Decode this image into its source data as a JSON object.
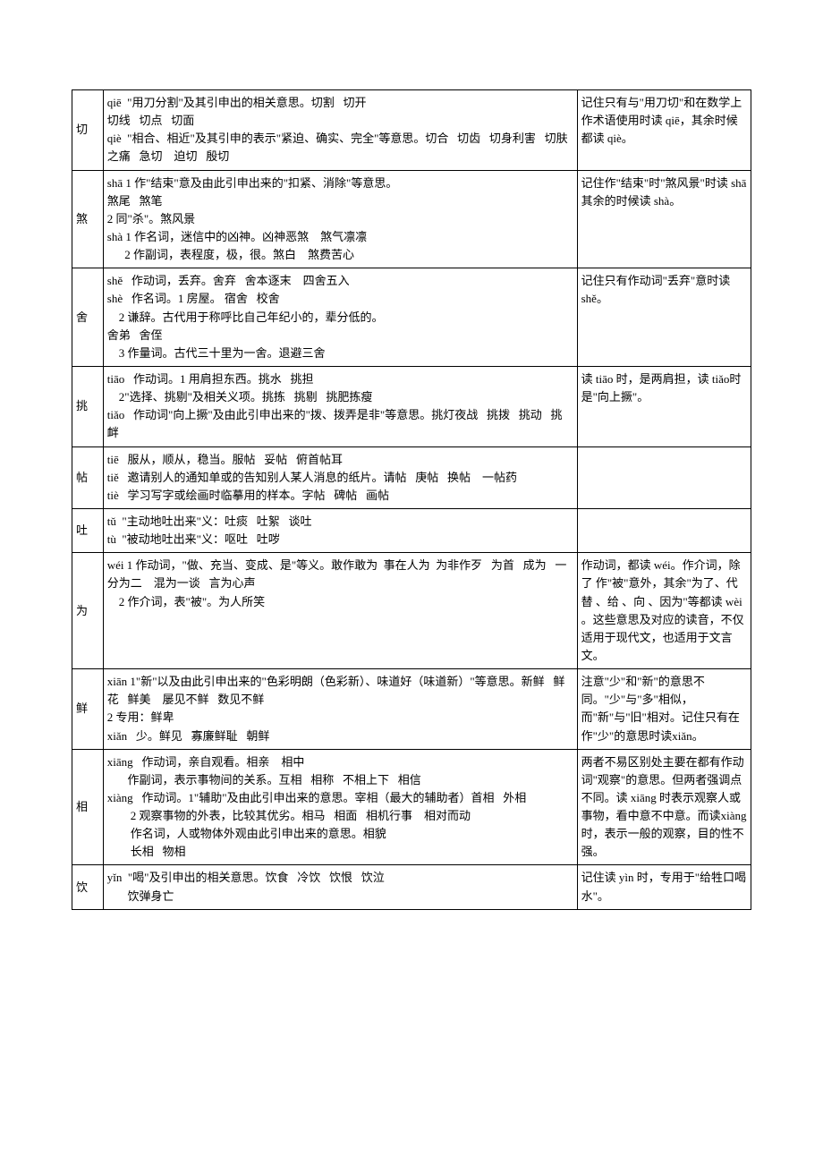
{
  "table": {
    "col_widths": [
      "34px",
      "518px",
      "190px"
    ],
    "border_color": "#000000",
    "font_size": 13,
    "rows": [
      {
        "char": "切",
        "def": "qiē  \"用刀分割\"及其引申出的相关意思。切割   切开\n切线   切点   切面\nqiè  \"相合、相近\"及其引申的表示\"紧迫、确实、完全\"等意思。切合   切齿   切身利害   切肤之痛   急切    迫切   殷切",
        "note": "记住只有与\"用刀切\"和在数学上作术语使用时读 qiē，其余时候都读 qiè。"
      },
      {
        "char": "煞",
        "def": "shā 1 作\"结束\"意及由此引申出来的\"扣紧、消除\"等意思。\n煞尾   煞笔\n2 同\"杀\"。煞风景\nshà 1 作名词，迷信中的凶神。凶神恶煞    煞气凛凛\n      2 作副词，表程度，极，很。煞白    煞费苦心",
        "note": "记住作\"结束\"时\"煞风景\"时读 shā\n其余的时候读 shà。"
      },
      {
        "char": "舍",
        "def": "shě   作动词，丢弃。舍弃   舍本逐末    四舍五入\nshè   作名词。1 房屋。 宿舍   校舍\n    2 谦辞。古代用于称呼比自己年纪小的，辈分低的。\n舍弟   舍侄\n    3 作量词。古代三十里为一舍。退避三舍",
        "note": "记住只有作动词\"丢弃\"意时读shě。"
      },
      {
        "char": "挑",
        "def": "tiāo   作动词。1 用肩担东西。挑水   挑担\n    2\"选择、挑剔\"及相关义项。挑拣   挑剔   挑肥拣瘦\ntiǎo   作动词\"向上撅\"及由此引申出来的\"拨、拨弄是非\"等意思。挑灯夜战   挑拨   挑动   挑衅",
        "note": "读 tiāo 时，是两肩担，读 tiǎo时是\"向上撅\"。"
      },
      {
        "char": "帖",
        "def": "tiē   服从，顺从，稳当。服帖   妥帖   俯首帖耳\ntiě   邀请别人的通知单或的告知别人某人消息的纸片。请帖   庚帖   换帖    一帖药\ntiè   学习写字或绘画时临摹用的样本。字帖   碑帖   画帖",
        "note": ""
      },
      {
        "char": "吐",
        "def": "tǔ  \"主动地吐出来\"义：吐痰   吐絮   谈吐\ntù  \"被动地吐出来\"义：呕吐   吐哕",
        "note": ""
      },
      {
        "char": "为",
        "def": "wéi 1 作动词，\"做、充当、变成、是\"等义。敢作敢为  事在人为  为非作歹   为首   成为   一分为二    混为一谈   言为心声\n    2 作介词，表\"被\"。为人所笑",
        "note": "作动词，都读 wéi。作介词，除了 作\"被\"意外，其余\"为了、代替 、给 、向 、因为\"等都读 wèi 。这些意思及对应的读音，不仅适用于现代文，也适用于文言文。"
      },
      {
        "char": "鲜",
        "def": "xiān 1\"新\"以及由此引申出来的\"色彩明朗（色彩新）、味道好（味道新）\"等意思。新鲜   鲜花   鲜美    屡见不鲜   数见不鲜\n2 专用：鲜卑\nxiǎn   少。鲜见   寡廉鲜耻   朝鲜",
        "note": "注意\"少\"和\"新\"的意思不同。\"少\"与\"多\"相似，而\"新\"与\"旧\"相对。记住只有在作\"少\"的意思时读xiǎn。"
      },
      {
        "char": "相",
        "def": "xiāng   作动词，亲自观看。相亲    相中\n       作副词，表示事物间的关系。互相   相称   不相上下   相信\nxiàng   作动词。1\"辅助\"及由此引申出来的意思。宰相（最大的辅助者）首相   外相\n        2 观察事物的外表，比较其优劣。相马   相面   相机行事    相对而动\n        作名词，人或物体外观由此引申出来的意思。相貌   \n        长相   物相",
        "note": "两者不易区别处主要在都有作动词\"观察\"的意思。但两者强调点不同。读 xiāng 时表示观察人或事物，看中意不中意。而读xiàng 时，表示一般的观察，目的性不强。"
      },
      {
        "char": "饮",
        "def": "yǐn  \"喝\"及引申出的相关意思。饮食   冷饮   饮恨   饮泣   \n       饮弹身亡",
        "note": "记住读 yìn 时，专用于\"给牲口喝水\"。"
      }
    ]
  }
}
